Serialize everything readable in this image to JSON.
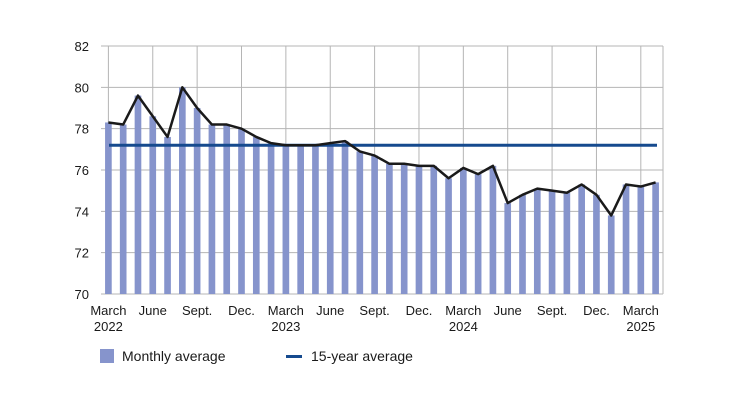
{
  "chart_data": {
    "type": "bar",
    "title": "",
    "xlabel": "",
    "ylabel": "",
    "ylim": [
      70,
      82
    ],
    "yticks": [
      70,
      72,
      74,
      76,
      78,
      80,
      82
    ],
    "grid": true,
    "legend_position": "bottom-left",
    "x_tick_labels": [
      {
        "index": 0,
        "lines": [
          "March",
          "2022"
        ]
      },
      {
        "index": 3,
        "lines": [
          "June"
        ]
      },
      {
        "index": 6,
        "lines": [
          "Sept."
        ]
      },
      {
        "index": 9,
        "lines": [
          "Dec."
        ]
      },
      {
        "index": 12,
        "lines": [
          "March",
          "2023"
        ]
      },
      {
        "index": 15,
        "lines": [
          "June"
        ]
      },
      {
        "index": 18,
        "lines": [
          "Sept."
        ]
      },
      {
        "index": 21,
        "lines": [
          "Dec."
        ]
      },
      {
        "index": 24,
        "lines": [
          "March",
          "2024"
        ]
      },
      {
        "index": 27,
        "lines": [
          "June"
        ]
      },
      {
        "index": 30,
        "lines": [
          "Sept."
        ]
      },
      {
        "index": 33,
        "lines": [
          "Dec."
        ]
      },
      {
        "index": 36,
        "lines": [
          "March",
          "2025"
        ]
      }
    ],
    "series": [
      {
        "name": "Monthly average",
        "kind": "bar+line",
        "bar_color": "#8694cc",
        "line_color": "#1a1a1a",
        "values": [
          78.3,
          78.2,
          79.6,
          78.6,
          77.6,
          80.0,
          79.0,
          78.2,
          78.2,
          78.0,
          77.6,
          77.3,
          77.2,
          77.2,
          77.2,
          77.3,
          77.4,
          76.9,
          76.7,
          76.3,
          76.3,
          76.2,
          76.2,
          75.6,
          76.1,
          75.8,
          76.2,
          74.4,
          74.8,
          75.1,
          75.0,
          74.9,
          75.3,
          74.8,
          73.8,
          75.3,
          75.2,
          75.4
        ]
      },
      {
        "name": "15-year average",
        "kind": "hline",
        "color": "#164a8e",
        "value": 77.2
      }
    ]
  }
}
